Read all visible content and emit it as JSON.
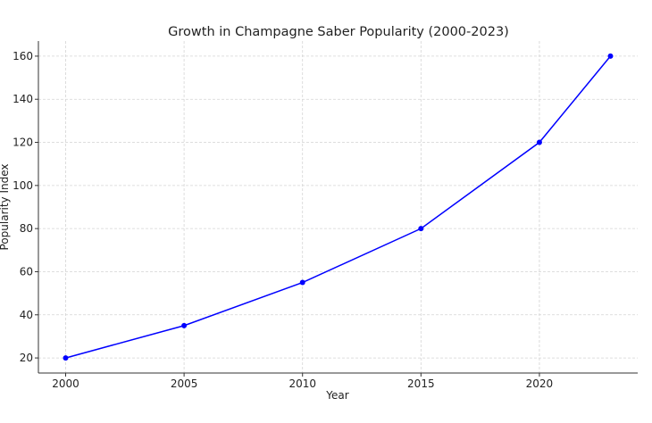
{
  "chart_data": {
    "type": "line",
    "title": "Growth in Champagne Saber Popularity (2000-2023)",
    "xlabel": "Year",
    "ylabel": "Popularity Index",
    "x": [
      2000,
      2005,
      2010,
      2015,
      2020,
      2023
    ],
    "series": [
      {
        "values": [
          20,
          35,
          55,
          80,
          120,
          160
        ],
        "color": "#0000ff",
        "marker": "circle"
      }
    ],
    "xticks": [
      2000,
      2005,
      2010,
      2015,
      2020
    ],
    "yticks": [
      20,
      40,
      60,
      80,
      100,
      120,
      140,
      160
    ],
    "xlim": [
      1998.85,
      2024.15
    ],
    "ylim": [
      13,
      167
    ],
    "grid": true,
    "grid_style": "dashed"
  }
}
